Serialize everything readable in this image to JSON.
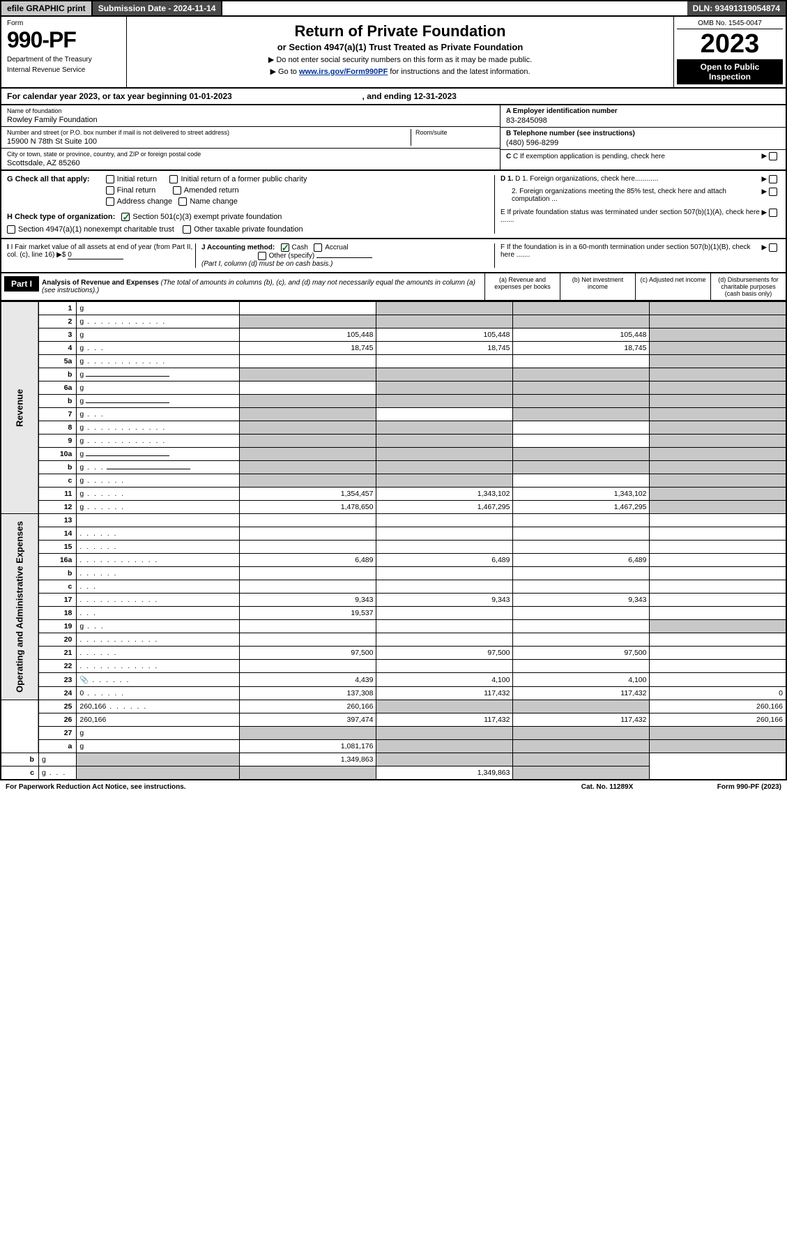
{
  "topbar": {
    "efile": "efile GRAPHIC print",
    "submission": "Submission Date - 2024-11-14",
    "dln": "DLN: 93491319054874"
  },
  "header": {
    "form_label": "Form",
    "form_number": "990-PF",
    "dept1": "Department of the Treasury",
    "dept2": "Internal Revenue Service",
    "title": "Return of Private Foundation",
    "subtitle": "or Section 4947(a)(1) Trust Treated as Private Foundation",
    "note1": "▶ Do not enter social security numbers on this form as it may be made public.",
    "note2_pre": "▶ Go to ",
    "note2_link": "www.irs.gov/Form990PF",
    "note2_post": " for instructions and the latest information.",
    "omb": "OMB No. 1545-0047",
    "year": "2023",
    "open": "Open to Public Inspection"
  },
  "calendar": {
    "pre": "For calendar year 2023, or tax year beginning ",
    "begin": "01-01-2023",
    "mid": ", and ending ",
    "end": "12-31-2023"
  },
  "id": {
    "name_lbl": "Name of foundation",
    "name_val": "Rowley Family Foundation",
    "addr_lbl": "Number and street (or P.O. box number if mail is not delivered to street address)",
    "addr_val": "15900 N 78th St Suite 100",
    "room_lbl": "Room/suite",
    "city_lbl": "City or town, state or province, country, and ZIP or foreign postal code",
    "city_val": "Scottsdale, AZ  85260",
    "a_lbl": "A Employer identification number",
    "a_val": "83-2845098",
    "b_lbl": "B Telephone number (see instructions)",
    "b_val": "(480) 596-8299",
    "c_lbl": "C If exemption application is pending, check here",
    "d1_lbl": "D 1. Foreign organizations, check here............",
    "d2_lbl": "2. Foreign organizations meeting the 85% test, check here and attach computation ...",
    "e_lbl": "E  If private foundation status was terminated under section 507(b)(1)(A), check here .......",
    "f_lbl": "F  If the foundation is in a 60-month termination under section 507(b)(1)(B), check here .......",
    "g_lbl": "G Check all that apply:",
    "g_opts": [
      "Initial return",
      "Initial return of a former public charity",
      "Final return",
      "Amended return",
      "Address change",
      "Name change"
    ],
    "h_lbl": "H Check type of organization:",
    "h_opts": [
      "Section 501(c)(3) exempt private foundation",
      "Section 4947(a)(1) nonexempt charitable trust",
      "Other taxable private foundation"
    ],
    "i_lbl": "I Fair market value of all assets at end of year (from Part II, col. (c), line 16)",
    "i_prefix": "▶$",
    "i_val": "0",
    "j_lbl": "J Accounting method:",
    "j_opts": [
      "Cash",
      "Accrual",
      "Other (specify)"
    ],
    "j_note": "(Part I, column (d) must be on cash basis.)"
  },
  "part1": {
    "label": "Part I",
    "title": "Analysis of Revenue and Expenses",
    "subtitle": "(The total of amounts in columns (b), (c), and (d) may not necessarily equal the amounts in column (a) (see instructions).)",
    "col_a": "(a)  Revenue and expenses per books",
    "col_b": "(b)  Net investment income",
    "col_c": "(c)  Adjusted net income",
    "col_d": "(d)  Disbursements for charitable purposes (cash basis only)"
  },
  "sections": {
    "revenue": "Revenue",
    "expenses": "Operating and Administrative Expenses"
  },
  "rows": [
    {
      "n": "1",
      "d": "g",
      "a": "",
      "b": "g",
      "c": "g"
    },
    {
      "n": "2",
      "d": "g",
      "dots": "dots",
      "a": "g",
      "b": "g",
      "c": "g"
    },
    {
      "n": "3",
      "d": "g",
      "a": "105,448",
      "b": "105,448",
      "c": "105,448"
    },
    {
      "n": "4",
      "d": "g",
      "dots": "dots-xs",
      "a": "18,745",
      "b": "18,745",
      "c": "18,745"
    },
    {
      "n": "5a",
      "d": "g",
      "dots": "dots",
      "a": "",
      "b": "",
      "c": ""
    },
    {
      "n": "b",
      "d": "g",
      "inline": true,
      "a": "g",
      "b": "g",
      "c": "g"
    },
    {
      "n": "6a",
      "d": "g",
      "a": "",
      "b": "g",
      "c": "g"
    },
    {
      "n": "b",
      "d": "g",
      "inline": true,
      "a": "g",
      "b": "g",
      "c": "g"
    },
    {
      "n": "7",
      "d": "g",
      "dots": "dots-xs",
      "a": "g",
      "b": "",
      "c": "g"
    },
    {
      "n": "8",
      "d": "g",
      "dots": "dots",
      "a": "g",
      "b": "g",
      "c": ""
    },
    {
      "n": "9",
      "d": "g",
      "dots": "dots",
      "a": "g",
      "b": "g",
      "c": ""
    },
    {
      "n": "10a",
      "d": "g",
      "inline": true,
      "a": "g",
      "b": "g",
      "c": "g"
    },
    {
      "n": "b",
      "d": "g",
      "dots": "dots-xs",
      "inline": true,
      "a": "g",
      "b": "g",
      "c": "g"
    },
    {
      "n": "c",
      "d": "g",
      "dots": "dots-sm",
      "a": "g",
      "b": "g",
      "c": ""
    },
    {
      "n": "11",
      "d": "g",
      "dots": "dots-sm",
      "a": "1,354,457",
      "b": "1,343,102",
      "c": "1,343,102"
    },
    {
      "n": "12",
      "d": "g",
      "dots": "dots-sm",
      "a": "1,478,650",
      "b": "1,467,295",
      "c": "1,467,295"
    },
    {
      "n": "13",
      "d": "",
      "a": "",
      "b": "",
      "c": ""
    },
    {
      "n": "14",
      "d": "",
      "dots": "dots-sm",
      "a": "",
      "b": "",
      "c": ""
    },
    {
      "n": "15",
      "d": "",
      "dots": "dots-sm",
      "a": "",
      "b": "",
      "c": ""
    },
    {
      "n": "16a",
      "d": "",
      "dots": "dots",
      "a": "6,489",
      "b": "6,489",
      "c": "6,489"
    },
    {
      "n": "b",
      "d": "",
      "dots": "dots-sm",
      "a": "",
      "b": "",
      "c": ""
    },
    {
      "n": "c",
      "d": "",
      "dots": "dots-xs",
      "a": "",
      "b": "",
      "c": ""
    },
    {
      "n": "17",
      "d": "",
      "dots": "dots",
      "a": "9,343",
      "b": "9,343",
      "c": "9,343"
    },
    {
      "n": "18",
      "d": "",
      "dots": "dots-xs",
      "a": "19,537",
      "b": "",
      "c": ""
    },
    {
      "n": "19",
      "d": "g",
      "dots": "dots-xs",
      "a": "",
      "b": "",
      "c": ""
    },
    {
      "n": "20",
      "d": "",
      "dots": "dots",
      "a": "",
      "b": "",
      "c": ""
    },
    {
      "n": "21",
      "d": "",
      "dots": "dots-sm",
      "a": "97,500",
      "b": "97,500",
      "c": "97,500"
    },
    {
      "n": "22",
      "d": "",
      "dots": "dots",
      "a": "",
      "b": "",
      "c": ""
    },
    {
      "n": "23",
      "d": "",
      "dots": "dots-sm",
      "icon": true,
      "a": "4,439",
      "b": "4,100",
      "c": "4,100"
    },
    {
      "n": "24",
      "d": "0",
      "dots": "dots-sm",
      "a": "137,308",
      "b": "117,432",
      "c": "117,432"
    },
    {
      "n": "25",
      "d": "260,166",
      "dots": "dots-sm",
      "a": "260,166",
      "b": "g",
      "c": "g"
    },
    {
      "n": "26",
      "d": "260,166",
      "a": "397,474",
      "b": "117,432",
      "c": "117,432"
    },
    {
      "n": "27",
      "d": "g",
      "a": "g",
      "b": "g",
      "c": "g"
    },
    {
      "n": "a",
      "d": "g",
      "a": "1,081,176",
      "b": "g",
      "c": "g"
    },
    {
      "n": "b",
      "d": "g",
      "a": "g",
      "b": "1,349,863",
      "c": "g"
    },
    {
      "n": "c",
      "d": "g",
      "dots": "dots-xs",
      "a": "g",
      "b": "g",
      "c": "1,349,863"
    }
  ],
  "footer": {
    "left": "For Paperwork Reduction Act Notice, see instructions.",
    "mid": "Cat. No. 11289X",
    "right": "Form 990-PF (2023)"
  }
}
